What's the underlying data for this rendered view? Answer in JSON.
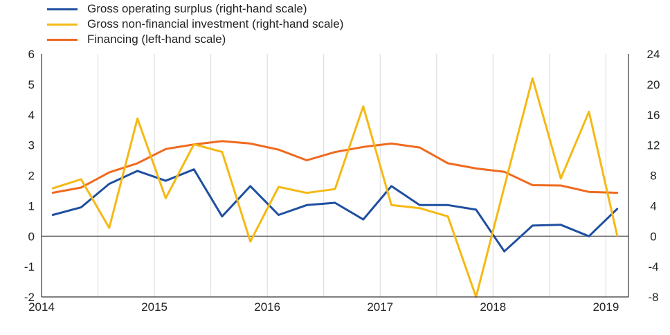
{
  "chart_data": {
    "type": "line",
    "x_ticks": [
      "2014",
      "2015",
      "2016",
      "2017",
      "2018",
      "2019"
    ],
    "left_axis": {
      "min": -2,
      "max": 6,
      "ticks": [
        "-2",
        "-1",
        "0",
        "1",
        "2",
        "3",
        "4",
        "5",
        "6"
      ]
    },
    "right_axis": {
      "min": -8,
      "max": 24,
      "ticks": [
        "-8",
        "-4",
        "0",
        "4",
        "8",
        "12",
        "16",
        "20",
        "24"
      ]
    },
    "grid": "vertical",
    "legend_position": "top-left",
    "x": [
      2014.1,
      2014.35,
      2014.6,
      2014.85,
      2015.1,
      2015.35,
      2015.6,
      2015.85,
      2016.1,
      2016.35,
      2016.6,
      2016.85,
      2017.1,
      2017.35,
      2017.6,
      2017.85,
      2018.1,
      2018.35,
      2018.6,
      2018.85,
      2019.1
    ],
    "series": [
      {
        "name": "Gross operating surplus (right-hand scale)",
        "axis": "right",
        "color": "#1f4fa0",
        "values": [
          2.8,
          3.8,
          6.9,
          8.6,
          7.3,
          8.8,
          2.6,
          6.6,
          2.8,
          4.1,
          4.4,
          2.2,
          6.6,
          4.1,
          4.1,
          3.5,
          -2.0,
          1.4,
          1.5,
          0.0,
          3.6
        ]
      },
      {
        "name": "Gross non-financial investment (right-hand scale)",
        "axis": "right",
        "color": "#f5b914",
        "values": [
          6.3,
          7.5,
          1.1,
          15.5,
          5.0,
          12.1,
          11.1,
          -0.7,
          6.5,
          5.7,
          6.2,
          17.1,
          4.1,
          3.7,
          2.6,
          -8.0,
          6.5,
          20.8,
          7.6,
          16.4,
          0.1
        ]
      },
      {
        "name": "Financing (left-hand scale)",
        "axis": "left",
        "color": "#ef6a1f",
        "values": [
          1.43,
          1.6,
          2.1,
          2.4,
          2.87,
          3.02,
          3.13,
          3.05,
          2.85,
          2.5,
          2.77,
          2.94,
          3.05,
          2.92,
          2.4,
          2.23,
          2.12,
          1.68,
          1.67,
          1.46,
          1.43
        ]
      }
    ]
  }
}
